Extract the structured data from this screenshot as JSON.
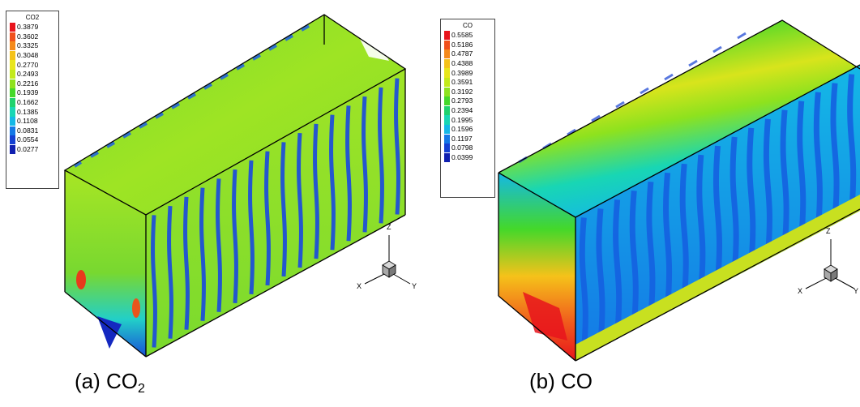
{
  "panels": [
    {
      "legend_title": "CO2",
      "legend_values": [
        "0.3879",
        "0.3602",
        "0.3325",
        "0.3048",
        "0.2770",
        "0.2493",
        "0.2216",
        "0.1939",
        "0.1662",
        "0.1385",
        "0.1108",
        "0.0831",
        "0.0554",
        "0.0277"
      ],
      "caption_prefix": "(a) CO",
      "caption_sub": "2",
      "axes": {
        "z": "Z",
        "x": "X",
        "y": "Y"
      }
    },
    {
      "legend_title": "CO",
      "legend_values": [
        "0.5585",
        "0.5186",
        "0.4787",
        "0.4388",
        "0.3989",
        "0.3591",
        "0.3192",
        "0.2793",
        "0.2394",
        "0.1995",
        "0.1596",
        "0.1197",
        "0.0798",
        "0.0399"
      ],
      "caption_prefix": "(b) CO",
      "caption_sub": "",
      "axes": {
        "z": "Z",
        "x": "X",
        "y": "Y"
      }
    }
  ],
  "colormap": [
    "#e8141c",
    "#f0501c",
    "#f58a1a",
    "#f5c21a",
    "#e8e61c",
    "#c2ea1a",
    "#8ee21e",
    "#44d82a",
    "#1ed26e",
    "#18d6b4",
    "#14b8e6",
    "#1478e6",
    "#1440d2",
    "#1020b0"
  ]
}
